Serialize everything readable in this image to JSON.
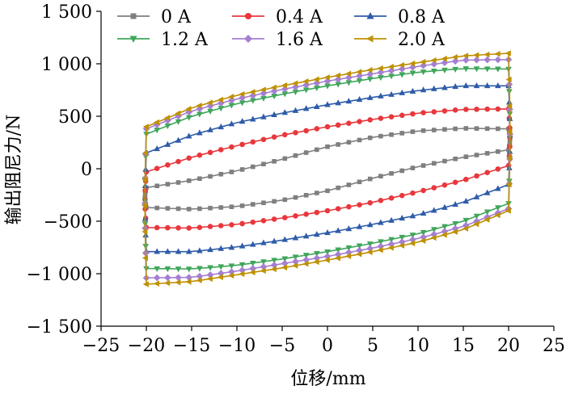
{
  "chart_data": {
    "type": "line",
    "title": "",
    "xlabel": "位移/mm",
    "ylabel": "输出阻尼力/N",
    "xlim": [
      -25,
      25
    ],
    "ylim": [
      -1500,
      1500
    ],
    "xticks": [
      -25,
      -20,
      -15,
      -10,
      -5,
      0,
      5,
      10,
      15,
      20,
      25
    ],
    "xtick_labels": [
      "−25",
      "−20",
      "−15",
      "−10",
      "−5",
      "0",
      "5",
      "10",
      "15",
      "20",
      "25"
    ],
    "yticks": [
      1500,
      1000,
      500,
      0,
      -500,
      -1000,
      -1500
    ],
    "ytick_labels": [
      "1 500",
      "1 000",
      "500",
      "0",
      "−500",
      "−1 000",
      "−1 500"
    ],
    "grid": false,
    "legend_position": "top",
    "displacement_amplitude": 20,
    "series": [
      {
        "name": "0 A",
        "color": "#7f7f7f",
        "marker": "square",
        "upper": {
          "x": [
            -20,
            -15,
            -10,
            -5,
            0,
            5,
            10,
            15,
            20
          ],
          "y": [
            -180,
            -110,
            -20,
            90,
            210,
            300,
            360,
            385,
            380
          ]
        },
        "lower": {
          "x": [
            -20,
            -15,
            -10,
            -5,
            0,
            5,
            10,
            15,
            20
          ],
          "y": [
            -370,
            -385,
            -360,
            -300,
            -210,
            -90,
            20,
            110,
            180
          ]
        }
      },
      {
        "name": "0.4 A",
        "color": "#e8383d",
        "marker": "circle",
        "upper": {
          "x": [
            -20,
            -15,
            -10,
            -5,
            0,
            5,
            10,
            15,
            20
          ],
          "y": [
            -30,
            110,
            220,
            320,
            400,
            470,
            530,
            565,
            570
          ]
        },
        "lower": {
          "x": [
            -20,
            -15,
            -10,
            -5,
            0,
            5,
            10,
            15,
            20
          ],
          "y": [
            -560,
            -565,
            -530,
            -470,
            -400,
            -320,
            -220,
            -110,
            30
          ]
        }
      },
      {
        "name": "0.8 A",
        "color": "#2e5ca8",
        "marker": "triangle-up",
        "upper": {
          "x": [
            -20,
            -15,
            -10,
            -5,
            0,
            5,
            10,
            15,
            20
          ],
          "y": [
            150,
            320,
            440,
            530,
            610,
            680,
            745,
            790,
            790
          ]
        },
        "lower": {
          "x": [
            -20,
            -15,
            -10,
            -5,
            0,
            5,
            10,
            15,
            20
          ],
          "y": [
            -790,
            -790,
            -745,
            -680,
            -610,
            -530,
            -440,
            -320,
            -150
          ]
        }
      },
      {
        "name": "1.2 A",
        "color": "#3fa65a",
        "marker": "triangle-down",
        "upper": {
          "x": [
            -20,
            -15,
            -10,
            -5,
            0,
            5,
            10,
            15,
            20
          ],
          "y": [
            330,
            500,
            620,
            710,
            790,
            860,
            920,
            955,
            950
          ]
        },
        "lower": {
          "x": [
            -20,
            -15,
            -10,
            -5,
            0,
            5,
            10,
            15,
            20
          ],
          "y": [
            -950,
            -955,
            -920,
            -860,
            -790,
            -710,
            -620,
            -500,
            -330
          ]
        }
      },
      {
        "name": "1.6 A",
        "color": "#a57fd1",
        "marker": "diamond",
        "upper": {
          "x": [
            -20,
            -15,
            -10,
            -5,
            0,
            5,
            10,
            15,
            20
          ],
          "y": [
            380,
            550,
            665,
            755,
            835,
            905,
            975,
            1035,
            1040
          ]
        },
        "lower": {
          "x": [
            -20,
            -15,
            -10,
            -5,
            0,
            5,
            10,
            15,
            20
          ],
          "y": [
            -1040,
            -1035,
            -975,
            -905,
            -835,
            -755,
            -665,
            -550,
            -380
          ]
        }
      },
      {
        "name": "2.0 A",
        "color": "#bf9000",
        "marker": "triangle-left",
        "upper": {
          "x": [
            -20,
            -15,
            -10,
            -5,
            0,
            5,
            10,
            15,
            20
          ],
          "y": [
            400,
            580,
            700,
            790,
            870,
            945,
            1010,
            1075,
            1100
          ]
        },
        "lower": {
          "x": [
            -20,
            -15,
            -10,
            -5,
            0,
            5,
            10,
            15,
            20
          ],
          "y": [
            -1100,
            -1075,
            -1010,
            -945,
            -870,
            -790,
            -700,
            -580,
            -400
          ]
        }
      }
    ]
  }
}
